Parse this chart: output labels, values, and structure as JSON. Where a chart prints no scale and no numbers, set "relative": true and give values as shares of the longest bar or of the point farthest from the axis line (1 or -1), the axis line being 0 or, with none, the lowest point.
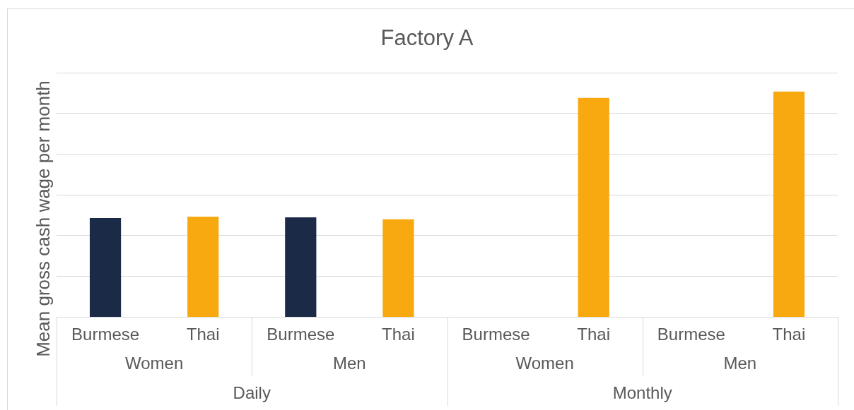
{
  "chart_data": {
    "type": "bar",
    "title": "Factory A",
    "ylabel": "Mean gross cash wage per month",
    "categories": [
      "Burmese",
      "Thai",
      "Burmese",
      "Thai",
      "Burmese",
      "Thai",
      "Burmese",
      "Thai"
    ],
    "values": [
      0.439,
      0.445,
      0.442,
      0.433,
      null,
      0.972,
      null,
      1
    ],
    "colors": [
      "#1a2a47",
      "#f7a90f",
      "#1a2a47",
      "#f7a90f",
      "#1a2a47",
      "#f7a90f",
      "#1a2a47",
      "#f7a90f"
    ],
    "annotations": [
      "Women",
      "Men",
      "Women",
      "Men",
      "Daily",
      "Monthly"
    ],
    "relative": true,
    "grid": "y"
  }
}
